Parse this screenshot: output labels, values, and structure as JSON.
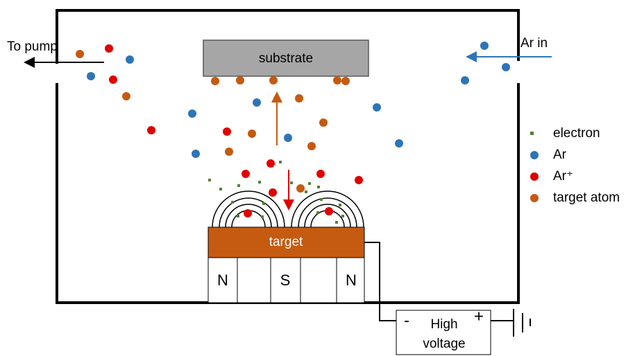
{
  "labels": {
    "to_pump": "To pump",
    "ar_in": "Ar in",
    "substrate": "substrate",
    "target": "target"
  },
  "magnets": [
    "N",
    "S",
    "N"
  ],
  "power_supply": {
    "minus": "-",
    "plus": "+",
    "line1": "High",
    "line2": "voltage"
  },
  "legend": [
    "electron",
    "Ar",
    "Ar⁺",
    "target atom"
  ]
}
